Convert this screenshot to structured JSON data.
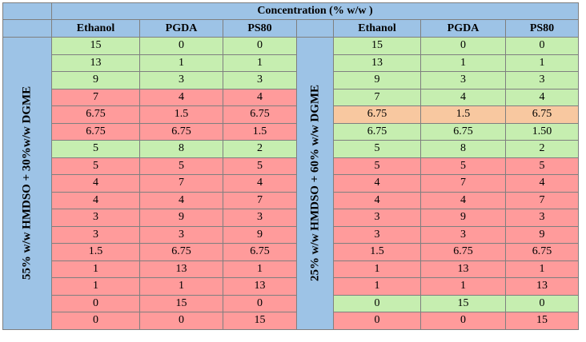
{
  "table": {
    "header_title": "Concentration (% w/w )",
    "columns": [
      "Ethanol",
      "PGDA",
      "PS80"
    ],
    "colors": {
      "good": "#c6eeb0",
      "bad": "#ff9b9b",
      "mid": "#f8c8a0",
      "header": "#9dc3e6"
    },
    "left_group": {
      "label": "55% w/w HMDSO + 30%w/w DGME",
      "rows": [
        {
          "values": [
            "15",
            "0",
            "0"
          ],
          "status": "good"
        },
        {
          "values": [
            "13",
            "1",
            "1"
          ],
          "status": "good"
        },
        {
          "values": [
            "9",
            "3",
            "3"
          ],
          "status": "good"
        },
        {
          "values": [
            "7",
            "4",
            "4"
          ],
          "status": "bad"
        },
        {
          "values": [
            "6.75",
            "1.5",
            "6.75"
          ],
          "status": "bad"
        },
        {
          "values": [
            "6.75",
            "6.75",
            "1.5"
          ],
          "status": "bad"
        },
        {
          "values": [
            "5",
            "8",
            "2"
          ],
          "status": "good"
        },
        {
          "values": [
            "5",
            "5",
            "5"
          ],
          "status": "bad"
        },
        {
          "values": [
            "4",
            "7",
            "4"
          ],
          "status": "bad"
        },
        {
          "values": [
            "4",
            "4",
            "7"
          ],
          "status": "bad"
        },
        {
          "values": [
            "3",
            "9",
            "3"
          ],
          "status": "bad"
        },
        {
          "values": [
            "3",
            "3",
            "9"
          ],
          "status": "bad"
        },
        {
          "values": [
            "1.5",
            "6.75",
            "6.75"
          ],
          "status": "bad"
        },
        {
          "values": [
            "1",
            "13",
            "1"
          ],
          "status": "bad"
        },
        {
          "values": [
            "1",
            "1",
            "13"
          ],
          "status": "bad"
        },
        {
          "values": [
            "0",
            "15",
            "0"
          ],
          "status": "bad"
        },
        {
          "values": [
            "0",
            "0",
            "15"
          ],
          "status": "bad"
        }
      ]
    },
    "right_group": {
      "label": "25% w/w HMDSO + 60% w/w DGME",
      "rows": [
        {
          "values": [
            "15",
            "0",
            "0"
          ],
          "status": "good"
        },
        {
          "values": [
            "13",
            "1",
            "1"
          ],
          "status": "good"
        },
        {
          "values": [
            "9",
            "3",
            "3"
          ],
          "status": "good"
        },
        {
          "values": [
            "7",
            "4",
            "4"
          ],
          "status": "good"
        },
        {
          "values": [
            "6.75",
            "1.5",
            "6.75"
          ],
          "status": "mid"
        },
        {
          "values": [
            "6.75",
            "6.75",
            "1.50"
          ],
          "status": "good"
        },
        {
          "values": [
            "5",
            "8",
            "2"
          ],
          "status": "good"
        },
        {
          "values": [
            "5",
            "5",
            "5"
          ],
          "status": "bad"
        },
        {
          "values": [
            "4",
            "7",
            "4"
          ],
          "status": "bad"
        },
        {
          "values": [
            "4",
            "4",
            "7"
          ],
          "status": "bad"
        },
        {
          "values": [
            "3",
            "9",
            "3"
          ],
          "status": "bad"
        },
        {
          "values": [
            "3",
            "3",
            "9"
          ],
          "status": "bad"
        },
        {
          "values": [
            "1.5",
            "6.75",
            "6.75"
          ],
          "status": "bad"
        },
        {
          "values": [
            "1",
            "13",
            "1"
          ],
          "status": "bad"
        },
        {
          "values": [
            "1",
            "1",
            "13"
          ],
          "status": "bad"
        },
        {
          "values": [
            "0",
            "15",
            "0"
          ],
          "status": "good"
        },
        {
          "values": [
            "0",
            "0",
            "15"
          ],
          "status": "bad"
        }
      ]
    }
  }
}
